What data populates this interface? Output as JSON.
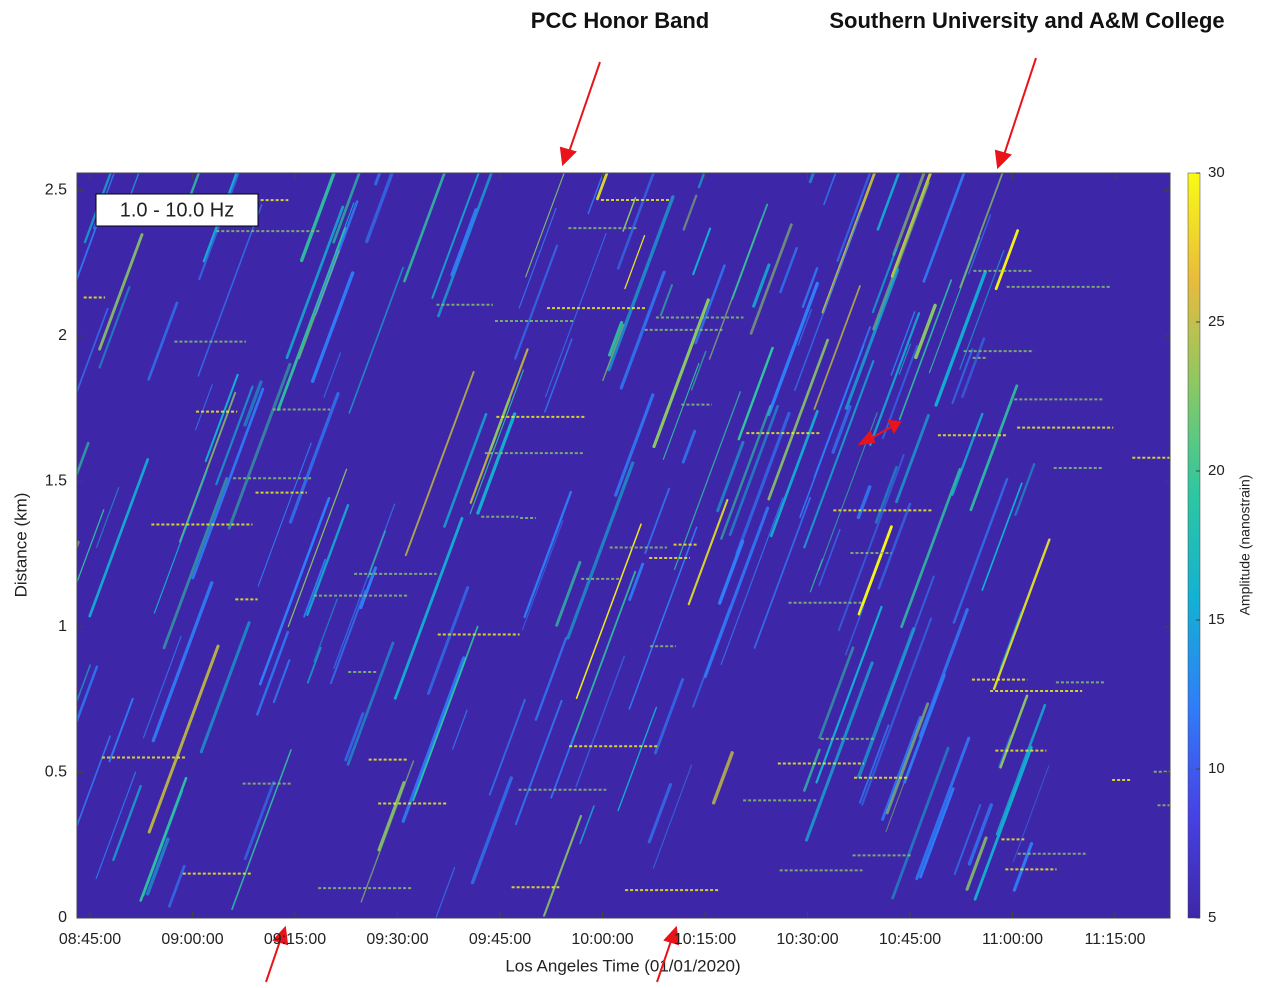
{
  "chart_data": {
    "type": "heatmap",
    "annotations": [
      "PCC Honor Band",
      "Southern University and A&M College"
    ],
    "panel_label": "1.0 - 10.0 Hz",
    "xlabel": "Los Angeles Time (01/01/2020)",
    "ylabel": "Distance (km)",
    "colorbar_label": "Amplitude (nanostrain)",
    "xlim": [
      "08:43:06",
      "11:23:03"
    ],
    "xticks": [
      "08:45:00",
      "09:00:00",
      "09:15:00",
      "09:30:00",
      "09:45:00",
      "10:00:00",
      "10:15:00",
      "10:30:00",
      "10:45:00",
      "11:00:00",
      "11:15:00"
    ],
    "ylim": [
      0,
      2.56
    ],
    "yticks": [
      0,
      0.5,
      1,
      1.5,
      2,
      2.5
    ],
    "clim": [
      5,
      30
    ],
    "cticks": [
      5,
      10,
      15,
      20,
      25,
      30
    ],
    "colormap": [
      "#3e26a8",
      "#4743e6",
      "#2f7ef9",
      "#13b1d4",
      "#2ec7a0",
      "#8ac865",
      "#e9bb3c",
      "#f9fb15"
    ]
  }
}
